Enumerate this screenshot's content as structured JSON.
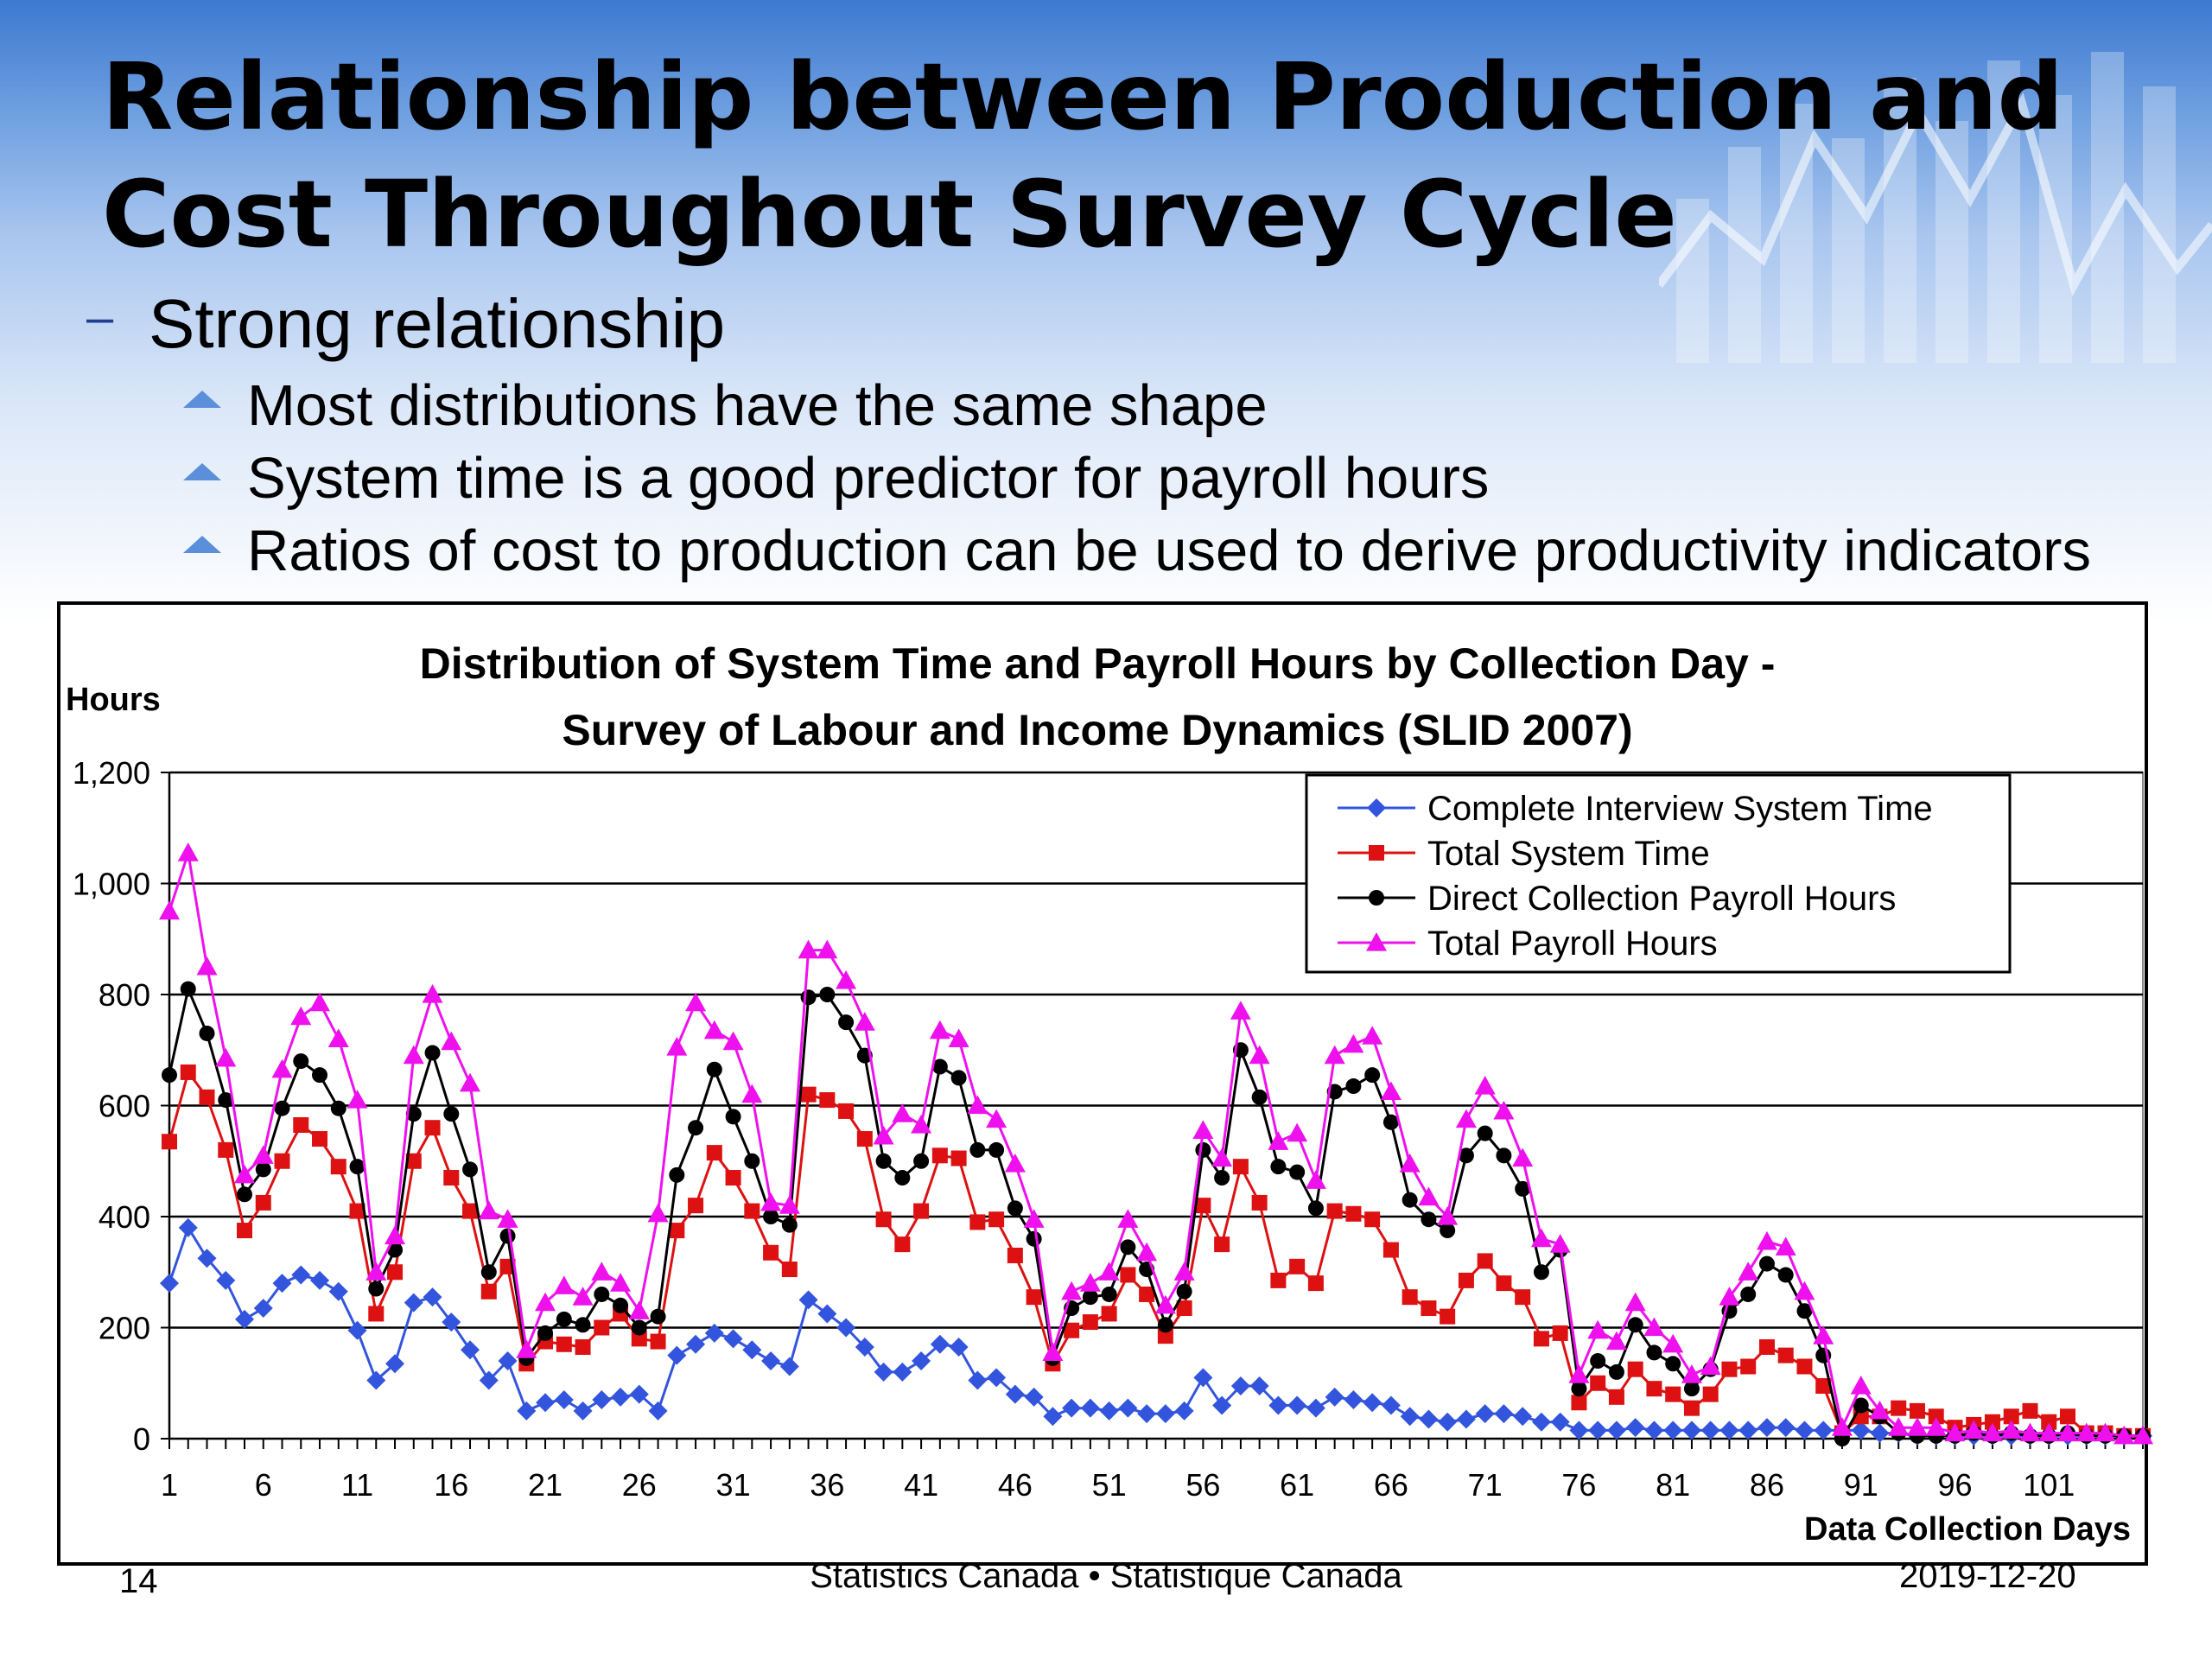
{
  "slide": {
    "title_lines": [
      "Relationship between Production and",
      "Cost Throughout Survey Cycle"
    ],
    "bullet_level1": {
      "marker": "–",
      "text": "Strong relationship"
    },
    "bullets_level2": [
      "Most distributions have the same shape",
      "System time is a good predictor for payroll hours",
      "Ratios of cost to production can be used to derive productivity indicators"
    ],
    "footer": {
      "page_number": "14",
      "center": "Statistics Canada • Statistique Canada",
      "date": "2019-12-20"
    }
  },
  "chart_data": {
    "type": "line",
    "title": "Distribution of System Time and Payroll Hours by Collection Day -",
    "subtitle": "Survey of Labour and Income Dynamics (SLID 2007)",
    "ylabel": "Hours",
    "xlabel": "Data Collection Days",
    "ylim": [
      0,
      1200
    ],
    "yticks": [
      0,
      200,
      400,
      600,
      800,
      1000,
      1200
    ],
    "ytick_labels": [
      "0",
      "200",
      "400",
      "600",
      "800",
      "1,000",
      "1,200"
    ],
    "xlim": [
      1,
      106
    ],
    "xticks": [
      1,
      6,
      11,
      16,
      21,
      26,
      31,
      36,
      41,
      46,
      51,
      56,
      61,
      66,
      71,
      76,
      81,
      86,
      91,
      96,
      101
    ],
    "grid": "horizontal",
    "legend_position": "top-right",
    "x": [
      1,
      2,
      3,
      4,
      5,
      6,
      7,
      8,
      9,
      10,
      11,
      12,
      13,
      14,
      15,
      16,
      17,
      18,
      19,
      20,
      21,
      22,
      23,
      24,
      25,
      26,
      27,
      28,
      29,
      30,
      31,
      32,
      33,
      34,
      35,
      36,
      37,
      38,
      39,
      40,
      41,
      42,
      43,
      44,
      45,
      46,
      47,
      48,
      49,
      50,
      51,
      52,
      53,
      54,
      55,
      56,
      57,
      58,
      59,
      60,
      61,
      62,
      63,
      64,
      65,
      66,
      67,
      68,
      69,
      70,
      71,
      72,
      73,
      74,
      75,
      76,
      77,
      78,
      79,
      80,
      81,
      82,
      83,
      84,
      85,
      86,
      87,
      88,
      89,
      90,
      91,
      92,
      93,
      94,
      95,
      96,
      97,
      98,
      99,
      100,
      101,
      102,
      103,
      104,
      105,
      106
    ],
    "series": [
      {
        "name": "Complete Interview System Time",
        "color": "#3355dd",
        "marker": "diamond",
        "values": [
          280,
          380,
          325,
          285,
          215,
          235,
          280,
          295,
          285,
          265,
          195,
          105,
          135,
          245,
          255,
          210,
          160,
          105,
          140,
          50,
          65,
          70,
          50,
          70,
          75,
          80,
          50,
          150,
          170,
          190,
          180,
          160,
          140,
          130,
          250,
          225,
          200,
          165,
          120,
          120,
          140,
          170,
          165,
          105,
          110,
          80,
          75,
          40,
          55,
          55,
          50,
          55,
          45,
          45,
          50,
          110,
          60,
          95,
          95,
          60,
          60,
          55,
          75,
          70,
          65,
          60,
          40,
          35,
          30,
          35,
          45,
          45,
          40,
          30,
          30,
          15,
          15,
          15,
          20,
          15,
          15,
          15,
          15,
          15,
          15,
          20,
          20,
          15,
          15,
          15,
          15,
          10,
          10,
          5,
          5,
          5,
          5,
          5,
          5,
          5,
          5,
          5,
          5,
          5,
          5,
          5
        ]
      },
      {
        "name": "Total System Time",
        "color": "#dd1111",
        "marker": "square",
        "values": [
          535,
          660,
          615,
          520,
          375,
          425,
          500,
          565,
          540,
          490,
          410,
          225,
          300,
          500,
          560,
          470,
          410,
          265,
          310,
          135,
          175,
          170,
          165,
          200,
          225,
          180,
          175,
          375,
          420,
          515,
          470,
          410,
          335,
          305,
          620,
          610,
          590,
          540,
          395,
          350,
          410,
          510,
          505,
          390,
          395,
          330,
          255,
          135,
          195,
          210,
          225,
          295,
          260,
          185,
          235,
          420,
          350,
          490,
          425,
          285,
          310,
          280,
          410,
          405,
          395,
          340,
          255,
          235,
          220,
          285,
          320,
          280,
          255,
          180,
          190,
          65,
          100,
          75,
          125,
          90,
          80,
          55,
          80,
          125,
          130,
          165,
          150,
          130,
          95,
          10,
          40,
          40,
          55,
          50,
          40,
          20,
          25,
          30,
          40,
          50,
          30,
          40,
          10,
          10,
          5,
          5
        ]
      },
      {
        "name": "Direct Collection Payroll Hours",
        "color": "#000000",
        "marker": "circle",
        "values": [
          655,
          810,
          730,
          610,
          440,
          485,
          595,
          680,
          655,
          595,
          490,
          270,
          340,
          585,
          695,
          585,
          485,
          300,
          365,
          145,
          190,
          215,
          205,
          260,
          240,
          200,
          220,
          475,
          560,
          665,
          580,
          500,
          400,
          385,
          795,
          800,
          750,
          690,
          500,
          470,
          500,
          670,
          650,
          520,
          520,
          415,
          360,
          145,
          235,
          255,
          260,
          345,
          305,
          205,
          265,
          520,
          470,
          700,
          615,
          490,
          480,
          415,
          625,
          635,
          655,
          570,
          430,
          395,
          375,
          510,
          550,
          510,
          450,
          300,
          340,
          90,
          140,
          120,
          205,
          155,
          135,
          90,
          125,
          230,
          260,
          315,
          295,
          230,
          150,
          0,
          60,
          40,
          10,
          5,
          5,
          5,
          10,
          5,
          10,
          5,
          5,
          10,
          5,
          5,
          5,
          5
        ]
      },
      {
        "name": "Total Payroll Hours",
        "color": "#ee11ee",
        "marker": "triangle",
        "values": [
          950,
          1055,
          850,
          685,
          475,
          510,
          665,
          760,
          785,
          720,
          610,
          300,
          365,
          690,
          800,
          715,
          640,
          410,
          395,
          160,
          245,
          275,
          255,
          300,
          280,
          230,
          405,
          705,
          785,
          735,
          715,
          620,
          425,
          420,
          880,
          880,
          825,
          750,
          545,
          585,
          565,
          735,
          720,
          600,
          575,
          495,
          395,
          155,
          265,
          280,
          300,
          395,
          335,
          240,
          300,
          555,
          505,
          770,
          690,
          535,
          550,
          465,
          690,
          710,
          725,
          625,
          495,
          435,
          400,
          575,
          635,
          590,
          505,
          360,
          350,
          115,
          195,
          175,
          245,
          200,
          170,
          115,
          130,
          255,
          300,
          355,
          345,
          265,
          185,
          20,
          95,
          50,
          20,
          20,
          20,
          10,
          15,
          10,
          15,
          10,
          10,
          10,
          10,
          10,
          5,
          5
        ]
      }
    ]
  }
}
